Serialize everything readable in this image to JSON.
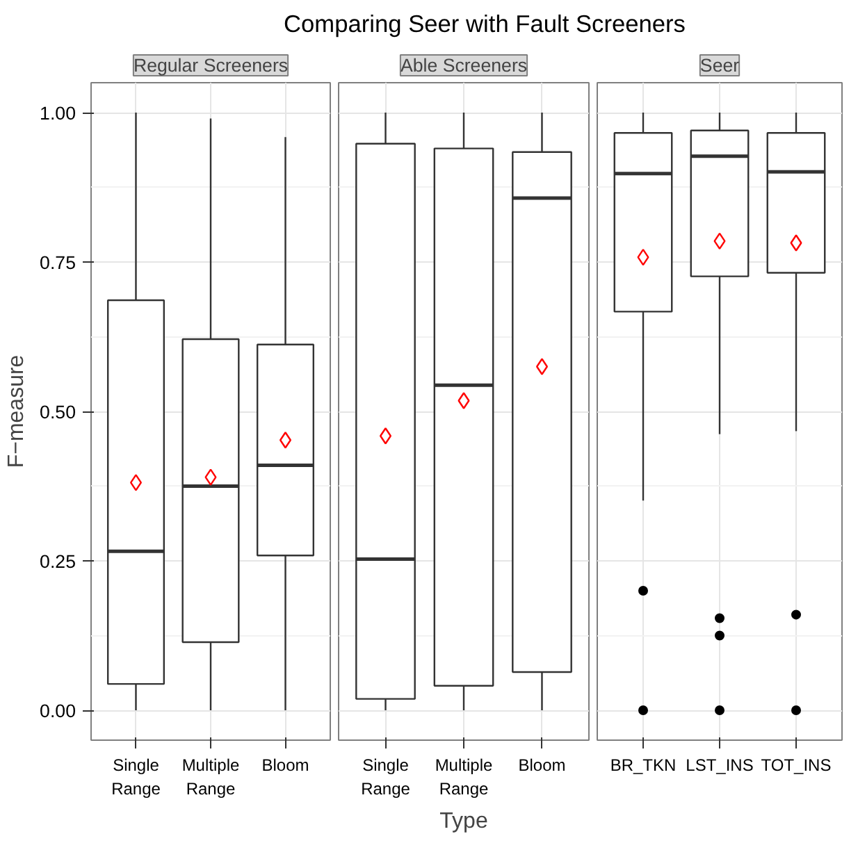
{
  "chart_data": [
    {
      "type": "box",
      "title": "Regular Screeners",
      "ylabel": "F−measure",
      "categories": [
        "Single\nRange",
        "Multiple\nRange",
        "Bloom"
      ],
      "ylim": [
        -0.05,
        1.05
      ],
      "yticks": [
        {
          "value": 0,
          "label": "0.00"
        },
        {
          "value": 0.25,
          "label": "0.25"
        },
        {
          "value": 0.5,
          "label": "0.50"
        },
        {
          "value": 0.75,
          "label": "0.75"
        },
        {
          "value": 1,
          "label": "1.00"
        }
      ],
      "grid": true,
      "boxes": [
        {
          "low": 0,
          "q1": 0.044,
          "median": 0.266,
          "q3": 0.686,
          "high": 1.0,
          "mean": 0.381
        },
        {
          "low": 0,
          "q1": 0.114,
          "median": 0.375,
          "q3": 0.621,
          "high": 0.99,
          "mean": 0.39
        },
        {
          "low": 0,
          "q1": 0.259,
          "median": 0.41,
          "q3": 0.612,
          "high": 0.959,
          "mean": 0.452
        }
      ]
    },
    {
      "type": "box",
      "title": "Able Screeners",
      "xlabel": "Type",
      "annotations": [
        "Comparing Seer with Fault Screeners"
      ],
      "categories": [
        "Single\nRange",
        "Multiple\nRange",
        "Bloom"
      ],
      "ylim": [
        -0.05,
        1.05
      ],
      "yticks": [
        0,
        0.25,
        0.5,
        0.75,
        1
      ],
      "grid": true,
      "tick_labels": "x",
      "boxes": [
        {
          "low": 0,
          "q1": 0.019,
          "median": 0.253,
          "q3": 0.948,
          "high": 1.0,
          "mean": 0.459
        },
        {
          "low": 0,
          "q1": 0.041,
          "median": 0.544,
          "q3": 0.94,
          "high": 1.0,
          "mean": 0.518
        },
        {
          "low": 0,
          "q1": 0.064,
          "median": 0.857,
          "q3": 0.934,
          "high": 1.0,
          "mean": 0.575
        }
      ]
    },
    {
      "type": "box",
      "title": "Seer",
      "categories": [
        "BR_TKN",
        "LST_INS",
        "TOT_INS"
      ],
      "ylim": [
        -0.05,
        1.05
      ],
      "yticks": [
        0,
        0.25,
        0.5,
        0.75,
        1
      ],
      "grid": true,
      "tick_labels": "x",
      "boxes": [
        {
          "low": 0.351,
          "q1": 0.667,
          "median": 0.898,
          "q3": 0.966,
          "high": 1.0,
          "mean": 0.758,
          "outliers": [
            0.2,
            0
          ]
        },
        {
          "low": 0.462,
          "q1": 0.726,
          "median": 0.927,
          "q3": 0.97,
          "high": 1.0,
          "mean": 0.785,
          "outliers": [
            0.154,
            0.125,
            0
          ]
        },
        {
          "low": 0.467,
          "q1": 0.732,
          "median": 0.901,
          "q3": 0.966,
          "high": 1.0,
          "mean": 0.782,
          "outliers": [
            0.16,
            0
          ]
        }
      ]
    }
  ]
}
